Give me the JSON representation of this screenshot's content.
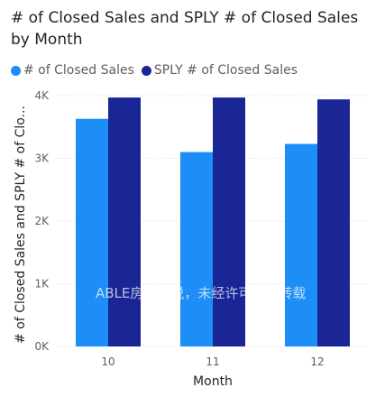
{
  "title": "# of Closed Sales and SPLY # of Closed Sales by Month",
  "watermark": "ABLE房市析说，未经许可不得转载",
  "legend": [
    {
      "label": "# of Closed Sales",
      "color": "#1c8ef5"
    },
    {
      "label": "SPLY # of Closed Sales",
      "color": "#1a2696"
    }
  ],
  "chart_data": {
    "type": "bar",
    "categories": [
      "10",
      "11",
      "12"
    ],
    "series": [
      {
        "name": "# of Closed Sales",
        "values": [
          3630,
          3100,
          3230
        ],
        "color": "#1c8ef5"
      },
      {
        "name": "SPLY # of Closed Sales",
        "values": [
          3970,
          3970,
          3940
        ],
        "color": "#1a2696"
      }
    ],
    "title": "# of Closed Sales and SPLY # of Closed Sales by Month",
    "xlabel": "Month",
    "ylabel": "# of Closed Sales and SPLY # of Clo...",
    "ylim": [
      0,
      4000
    ],
    "yticks": [
      0,
      1000,
      2000,
      3000,
      4000
    ],
    "ytick_labels": [
      "0K",
      "1K",
      "2K",
      "3K",
      "4K"
    ],
    "grid": true,
    "legend_position": "top-left"
  }
}
